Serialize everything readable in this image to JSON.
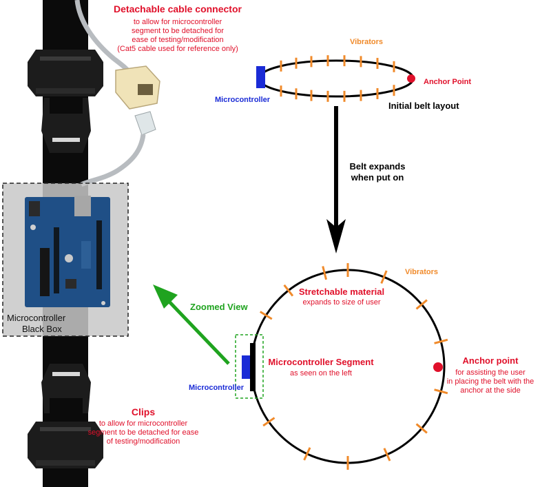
{
  "cable_connector": {
    "title": "Detachable cable connector",
    "lines": [
      "to allow for microcontroller",
      "segment to be detached for",
      "ease of testing/modification",
      "(Cat5 cable used for reference only)"
    ]
  },
  "top_belt": {
    "vibrators_label": "Vibrators",
    "anchor_label": "Anchor Point",
    "microcontroller_label": "Microcontroller",
    "caption": "Initial belt layout"
  },
  "expand_arrow": {
    "lines": [
      "Belt expands",
      "when put on"
    ]
  },
  "black_box": {
    "lines": [
      "Microcontroller",
      "Black Box"
    ]
  },
  "zoom_arrow": {
    "label": "Zoomed View"
  },
  "big_belt": {
    "vibrators_label": "Vibrators",
    "stretch_title": "Stretchable material",
    "stretch_sub": "expands to size of user",
    "segment_title": "Microcontroller Segment",
    "segment_sub": "as seen on the left",
    "microcontroller_label": "Microcontroller",
    "anchor_title": "Anchor point",
    "anchor_lines": [
      "for assisting the user",
      "in placing the belt with the",
      "anchor at the side"
    ]
  },
  "clips": {
    "title": "Clips",
    "lines": [
      "to allow for microcontroller",
      "segment to be detached for ease",
      "of testing/modification"
    ]
  },
  "colors": {
    "red": "#e0102a",
    "orange": "#f08a2a",
    "blue": "#1a2bd6",
    "green": "#1fa31f",
    "board": "#1f4f86"
  }
}
